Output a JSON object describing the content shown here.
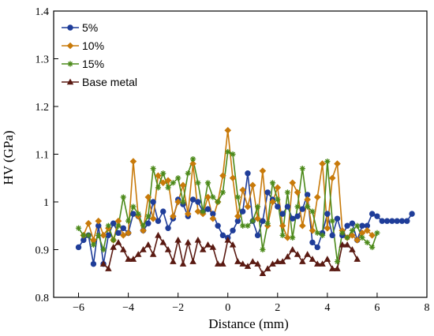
{
  "chart_data": {
    "type": "line",
    "title": "",
    "xlabel": "Distance (mm)",
    "ylabel": "HV (GPa)",
    "xlim": [
      -7,
      8
    ],
    "ylim": [
      0.8,
      1.4
    ],
    "xticks": [
      -6,
      -4,
      -2,
      0,
      2,
      4,
      6,
      8
    ],
    "yticks": [
      0.8,
      0.9,
      1.0,
      1.1,
      1.2,
      1.3,
      1.4
    ],
    "xtick_labels": [
      "−6",
      "−4",
      "−2",
      "0",
      "2",
      "4",
      "6",
      "8"
    ],
    "ytick_labels": [
      "0.8",
      "0.9",
      "1",
      "1.1",
      "1.2",
      "1.3",
      "1.4"
    ],
    "grid": false,
    "legend_position": "top-left",
    "series": [
      {
        "name": "5%",
        "color": "#1f3d99",
        "marker": "circle",
        "x": [
          -6,
          -5.8,
          -5.6,
          -5.4,
          -5.2,
          -5.0,
          -4.8,
          -4.6,
          -4.4,
          -4.2,
          -4.0,
          -3.8,
          -3.6,
          -3.4,
          -3.2,
          -3.0,
          -2.8,
          -2.6,
          -2.4,
          -2.2,
          -2.0,
          -1.8,
          -1.6,
          -1.4,
          -1.2,
          -1.0,
          -0.8,
          -0.6,
          -0.4,
          -0.2,
          0.0,
          0.2,
          0.4,
          0.6,
          0.8,
          1.0,
          1.2,
          1.4,
          1.6,
          1.8,
          2.0,
          2.2,
          2.4,
          2.6,
          2.8,
          3.0,
          3.2,
          3.4,
          3.6,
          3.8,
          4.0,
          4.2,
          4.4,
          4.6,
          4.8,
          5.0,
          5.2,
          5.4,
          5.6,
          5.8,
          6.0,
          6.2,
          6.4,
          6.6,
          6.8,
          7.0,
          7.2,
          7.4
        ],
        "y": [
          0.905,
          0.92,
          0.93,
          0.87,
          0.95,
          0.87,
          0.93,
          0.955,
          0.935,
          0.945,
          0.935,
          0.975,
          0.97,
          0.94,
          0.955,
          1.0,
          0.96,
          0.98,
          0.945,
          0.965,
          1.005,
          0.995,
          0.97,
          1.005,
          1.0,
          0.98,
          0.985,
          0.975,
          0.95,
          0.93,
          0.925,
          0.94,
          0.96,
          0.98,
          1.06,
          0.96,
          0.93,
          0.96,
          1.02,
          1.005,
          0.99,
          0.975,
          0.99,
          0.965,
          0.97,
          0.985,
          1.015,
          0.915,
          0.905,
          0.935,
          0.975,
          0.93,
          0.965,
          0.93,
          0.95,
          0.955,
          0.92,
          0.95,
          0.95,
          0.975,
          0.97,
          0.96,
          0.96,
          0.96,
          0.96,
          0.96,
          0.96,
          0.975
        ]
      },
      {
        "name": "10%",
        "color": "#c87a0a",
        "marker": "diamond",
        "x": [
          -5.8,
          -5.6,
          -5.4,
          -5.2,
          -5.0,
          -4.8,
          -4.6,
          -4.4,
          -4.2,
          -4.0,
          -3.8,
          -3.6,
          -3.4,
          -3.2,
          -3.0,
          -2.8,
          -2.6,
          -2.4,
          -2.2,
          -2.0,
          -1.8,
          -1.6,
          -1.4,
          -1.2,
          -1.0,
          -0.8,
          -0.6,
          -0.4,
          -0.2,
          0.0,
          0.2,
          0.4,
          0.6,
          0.8,
          1.0,
          1.2,
          1.4,
          1.6,
          1.8,
          2.0,
          2.2,
          2.4,
          2.6,
          2.8,
          3.0,
          3.2,
          3.4,
          3.6,
          3.8,
          4.0,
          4.2,
          4.4,
          4.6,
          4.8,
          5.0,
          5.2,
          5.4,
          5.6,
          5.8
        ],
        "y": [
          0.93,
          0.955,
          0.92,
          0.96,
          0.93,
          0.945,
          0.92,
          0.96,
          0.93,
          0.935,
          1.085,
          0.97,
          0.94,
          1.01,
          0.965,
          1.055,
          1.04,
          1.045,
          0.97,
          1.0,
          1.035,
          0.975,
          1.08,
          0.98,
          0.975,
          1.01,
          0.965,
          1.0,
          1.055,
          1.15,
          1.05,
          0.97,
          1.025,
          0.99,
          1.035,
          0.965,
          1.065,
          0.95,
          1.0,
          1.03,
          0.95,
          0.925,
          1.04,
          1.02,
          0.95,
          1.005,
          0.94,
          1.01,
          1.08,
          0.945,
          1.05,
          1.08,
          0.94,
          0.925,
          0.93,
          0.92,
          0.935,
          0.94,
          0.93
        ]
      },
      {
        "name": "15%",
        "color": "#4c8a1a",
        "marker": "star",
        "x": [
          -6.0,
          -5.8,
          -5.6,
          -5.4,
          -5.2,
          -5.0,
          -4.8,
          -4.6,
          -4.4,
          -4.2,
          -4.0,
          -3.8,
          -3.6,
          -3.4,
          -3.2,
          -3.0,
          -2.8,
          -2.6,
          -2.4,
          -2.2,
          -2.0,
          -1.8,
          -1.6,
          -1.4,
          -1.2,
          -1.0,
          -0.8,
          -0.6,
          -0.4,
          -0.2,
          0.0,
          0.2,
          0.4,
          0.6,
          0.8,
          1.0,
          1.2,
          1.4,
          1.6,
          1.8,
          2.0,
          2.2,
          2.4,
          2.6,
          2.8,
          3.0,
          3.2,
          3.4,
          3.6,
          3.8,
          4.0,
          4.2,
          4.4,
          4.6,
          4.8,
          5.0,
          5.2,
          5.4,
          5.6,
          5.8,
          6.0
        ],
        "y": [
          0.945,
          0.93,
          0.93,
          0.91,
          0.93,
          0.9,
          0.95,
          0.92,
          0.95,
          1.01,
          0.96,
          0.99,
          0.975,
          0.95,
          0.97,
          1.07,
          1.03,
          1.06,
          1.03,
          1.04,
          1.05,
          1.0,
          1.06,
          1.09,
          1.04,
          0.98,
          1.04,
          1.01,
          1.0,
          1.02,
          1.105,
          1.1,
          1.01,
          0.95,
          0.95,
          0.96,
          0.99,
          0.9,
          0.955,
          1.04,
          1.005,
          0.93,
          1.02,
          0.925,
          0.99,
          1.07,
          0.99,
          0.98,
          0.935,
          0.93,
          1.085,
          0.96,
          0.875,
          0.935,
          0.925,
          0.94,
          0.95,
          0.925,
          0.915,
          0.905,
          0.935
        ]
      },
      {
        "name": "Base metal",
        "color": "#5a1a12",
        "marker": "triangle",
        "x": [
          -5.0,
          -4.8,
          -4.6,
          -4.4,
          -4.2,
          -4.0,
          -3.8,
          -3.6,
          -3.4,
          -3.2,
          -3.0,
          -2.8,
          -2.6,
          -2.4,
          -2.2,
          -2.0,
          -1.8,
          -1.6,
          -1.4,
          -1.2,
          -1.0,
          -0.8,
          -0.6,
          -0.4,
          -0.2,
          0.0,
          0.2,
          0.4,
          0.6,
          0.8,
          1.0,
          1.2,
          1.4,
          1.6,
          1.8,
          2.0,
          2.2,
          2.4,
          2.6,
          2.8,
          3.0,
          3.2,
          3.4,
          3.6,
          3.8,
          4.0,
          4.2,
          4.4,
          4.6,
          4.8,
          5.0,
          5.2
        ],
        "y": [
          0.87,
          0.86,
          0.905,
          0.915,
          0.9,
          0.88,
          0.88,
          0.89,
          0.9,
          0.91,
          0.89,
          0.93,
          0.915,
          0.9,
          0.875,
          0.92,
          0.87,
          0.915,
          0.875,
          0.92,
          0.9,
          0.91,
          0.905,
          0.87,
          0.87,
          0.92,
          0.91,
          0.875,
          0.87,
          0.865,
          0.875,
          0.87,
          0.85,
          0.86,
          0.87,
          0.875,
          0.875,
          0.885,
          0.9,
          0.89,
          0.875,
          0.89,
          0.88,
          0.87,
          0.87,
          0.88,
          0.86,
          0.86,
          0.91,
          0.91,
          0.9,
          0.88
        ]
      }
    ]
  }
}
